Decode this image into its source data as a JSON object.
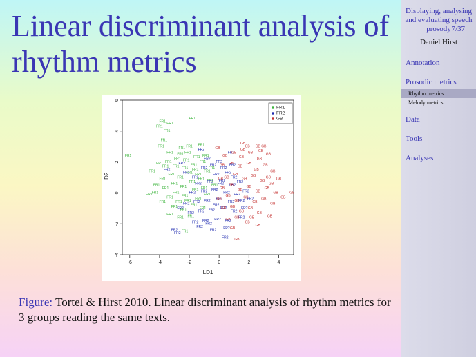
{
  "slide": {
    "title": "Linear discriminant analysis of rhythm metrics",
    "caption_prefix": "Figure:",
    "caption_text": "Tortel & Hirst 2010. Linear discriminant analysis of rhythm metrics for 3 groups reading the same texts."
  },
  "sidebar": {
    "title": "Displaying, analysing and evaluating speech prosody",
    "page": "7/37",
    "author": "Daniel Hirst",
    "items": [
      {
        "label": "Annotation"
      },
      {
        "label": "Prosodic metrics"
      },
      {
        "label": "Rhythm metrics"
      },
      {
        "label": "Melody metrics"
      },
      {
        "label": "Data"
      },
      {
        "label": "Tools"
      },
      {
        "label": "Analyses"
      }
    ]
  },
  "chart_data": {
    "type": "scatter",
    "xlabel": "LD1",
    "ylabel": "LD2",
    "xlim": [
      -6.5,
      5
    ],
    "ylim": [
      -4,
      6
    ],
    "xticks": [
      -6,
      -4,
      -2,
      0,
      2,
      4
    ],
    "yticks": [
      -4,
      -2,
      0,
      2,
      4,
      6
    ],
    "legend_position": "top-right",
    "series": [
      {
        "name": "FR1",
        "color": "#3cb43c",
        "points": [
          [
            -3.8,
            4.6
          ],
          [
            -4.0,
            4.3
          ],
          [
            -3.3,
            4.5
          ],
          [
            -1.8,
            4.8
          ],
          [
            -3.5,
            4.0
          ],
          [
            -3.7,
            3.4
          ],
          [
            -6.1,
            2.4
          ],
          [
            -3.9,
            3.0
          ],
          [
            -3.3,
            2.6
          ],
          [
            -2.5,
            2.9
          ],
          [
            -2.0,
            3.0
          ],
          [
            -1.2,
            3.1
          ],
          [
            -2.6,
            2.5
          ],
          [
            -2.8,
            2.2
          ],
          [
            -3.4,
            2.0
          ],
          [
            -2.2,
            2.1
          ],
          [
            -1.5,
            2.3
          ],
          [
            -3.6,
            1.7
          ],
          [
            -2.9,
            1.7
          ],
          [
            -2.3,
            1.6
          ],
          [
            -1.7,
            1.8
          ],
          [
            -1.1,
            2.0
          ],
          [
            -3.2,
            1.2
          ],
          [
            -2.6,
            1.0
          ],
          [
            -2.0,
            1.3
          ],
          [
            -1.4,
            1.2
          ],
          [
            -0.8,
            1.4
          ],
          [
            -3.8,
            0.9
          ],
          [
            -3.0,
            0.6
          ],
          [
            -2.4,
            0.4
          ],
          [
            -1.8,
            0.7
          ],
          [
            -1.2,
            0.9
          ],
          [
            -0.6,
            0.8
          ],
          [
            -4.2,
            0.5
          ],
          [
            -3.6,
            0.3
          ],
          [
            -2.9,
            0.0
          ],
          [
            -2.3,
            -0.2
          ],
          [
            -1.6,
            0.2
          ],
          [
            -1.0,
            0.3
          ],
          [
            -4.7,
            -0.1
          ],
          [
            -4.3,
            0.0
          ],
          [
            -3.3,
            -0.3
          ],
          [
            -2.7,
            -0.6
          ],
          [
            -2.1,
            -0.5
          ],
          [
            -1.4,
            -0.4
          ],
          [
            -0.8,
            -0.1
          ],
          [
            -3.8,
            -0.6
          ],
          [
            -3.0,
            -0.9
          ],
          [
            -2.4,
            -1.1
          ],
          [
            -1.7,
            -0.8
          ],
          [
            -1.1,
            -1.0
          ],
          [
            -3.3,
            -1.4
          ],
          [
            -2.6,
            -1.6
          ],
          [
            -1.9,
            -1.5
          ],
          [
            -2.3,
            -2.5
          ],
          [
            -0.5,
            1.6
          ],
          [
            -0.3,
            0.5
          ],
          [
            -4.5,
            1.4
          ],
          [
            -4.0,
            1.9
          ],
          [
            -2.1,
            2.6
          ],
          [
            -1.6,
            1.5
          ],
          [
            -0.9,
            2.4
          ]
        ]
      },
      {
        "name": "FR2",
        "color": "#1f2bb0",
        "points": [
          [
            -1.2,
            2.8
          ],
          [
            -3.5,
            1.5
          ],
          [
            -0.8,
            2.2
          ],
          [
            -0.4,
            1.8
          ],
          [
            0.0,
            2.0
          ],
          [
            0.3,
            1.6
          ],
          [
            -1.0,
            1.6
          ],
          [
            -0.2,
            1.2
          ],
          [
            0.6,
            1.3
          ],
          [
            1.0,
            1.0
          ],
          [
            -1.4,
            0.6
          ],
          [
            -0.6,
            0.7
          ],
          [
            0.2,
            0.8
          ],
          [
            0.9,
            0.5
          ],
          [
            1.4,
            0.7
          ],
          [
            -1.8,
            0.0
          ],
          [
            -1.0,
            0.1
          ],
          [
            -0.3,
            0.2
          ],
          [
            0.5,
            0.0
          ],
          [
            1.2,
            -0.1
          ],
          [
            1.8,
            0.1
          ],
          [
            -2.2,
            -0.7
          ],
          [
            -1.5,
            -0.6
          ],
          [
            -0.8,
            -0.5
          ],
          [
            0.0,
            -0.4
          ],
          [
            0.8,
            -0.6
          ],
          [
            1.5,
            -0.5
          ],
          [
            -1.9,
            -1.3
          ],
          [
            -1.2,
            -1.2
          ],
          [
            -0.5,
            -1.1
          ],
          [
            0.3,
            -1.0
          ],
          [
            1.0,
            -1.2
          ],
          [
            1.7,
            -1.0
          ],
          [
            -1.6,
            -1.9
          ],
          [
            -0.9,
            -1.8
          ],
          [
            -0.1,
            -1.7
          ],
          [
            0.6,
            -1.8
          ],
          [
            -1.3,
            -2.2
          ],
          [
            -0.4,
            -2.4
          ],
          [
            0.5,
            -2.3
          ],
          [
            -3.0,
            -2.4
          ],
          [
            -2.8,
            -2.6
          ],
          [
            0.4,
            -2.9
          ],
          [
            -2.5,
            1.9
          ],
          [
            -2.2,
            1.3
          ],
          [
            0.8,
            2.6
          ],
          [
            1.5,
            -1.6
          ],
          [
            -0.7,
            -2.0
          ],
          [
            0.1,
            0.6
          ],
          [
            -1.6,
            1.0
          ],
          [
            2.1,
            -0.4
          ],
          [
            -2.6,
            -1.0
          ],
          [
            0.9,
            1.8
          ],
          [
            -0.2,
            -0.8
          ]
        ]
      },
      {
        "name": "GB",
        "color": "#c4302f",
        "points": [
          [
            1.6,
            3.2
          ],
          [
            1.9,
            3.0
          ],
          [
            2.6,
            3.0
          ],
          [
            3.0,
            3.0
          ],
          [
            0.4,
            2.4
          ],
          [
            1.0,
            2.6
          ],
          [
            1.5,
            2.3
          ],
          [
            2.1,
            2.6
          ],
          [
            2.7,
            2.2
          ],
          [
            3.3,
            2.5
          ],
          [
            0.2,
            1.8
          ],
          [
            0.8,
            1.9
          ],
          [
            1.4,
            1.7
          ],
          [
            2.0,
            1.9
          ],
          [
            2.5,
            1.5
          ],
          [
            3.1,
            1.8
          ],
          [
            3.6,
            1.4
          ],
          [
            0.5,
            1.0
          ],
          [
            1.1,
            1.2
          ],
          [
            1.7,
            0.9
          ],
          [
            2.3,
            1.1
          ],
          [
            2.9,
            0.8
          ],
          [
            3.5,
            0.6
          ],
          [
            4.0,
            0.9
          ],
          [
            0.2,
            0.3
          ],
          [
            0.8,
            0.5
          ],
          [
            1.4,
            0.2
          ],
          [
            2.0,
            0.4
          ],
          [
            2.6,
            0.1
          ],
          [
            3.2,
            0.3
          ],
          [
            3.8,
            0.0
          ],
          [
            4.9,
            0.0
          ],
          [
            0.0,
            -0.4
          ],
          [
            0.6,
            -0.2
          ],
          [
            1.2,
            -0.5
          ],
          [
            1.8,
            -0.3
          ],
          [
            2.4,
            -0.6
          ],
          [
            3.0,
            -0.4
          ],
          [
            3.6,
            -0.7
          ],
          [
            0.3,
            -1.0
          ],
          [
            0.9,
            -0.9
          ],
          [
            1.5,
            -1.2
          ],
          [
            2.1,
            -1.0
          ],
          [
            2.7,
            -1.3
          ],
          [
            3.4,
            -1.5
          ],
          [
            0.6,
            -1.7
          ],
          [
            1.2,
            -1.6
          ],
          [
            1.9,
            -1.9
          ],
          [
            2.6,
            -2.1
          ],
          [
            0.9,
            -2.3
          ],
          [
            1.2,
            -3.0
          ],
          [
            -0.1,
            2.9
          ],
          [
            3.3,
            1.0
          ],
          [
            2.2,
            -1.6
          ],
          [
            1.6,
            2.8
          ],
          [
            4.3,
            -0.3
          ],
          [
            0.1,
            0.9
          ],
          [
            2.8,
            2.7
          ]
        ]
      }
    ]
  }
}
